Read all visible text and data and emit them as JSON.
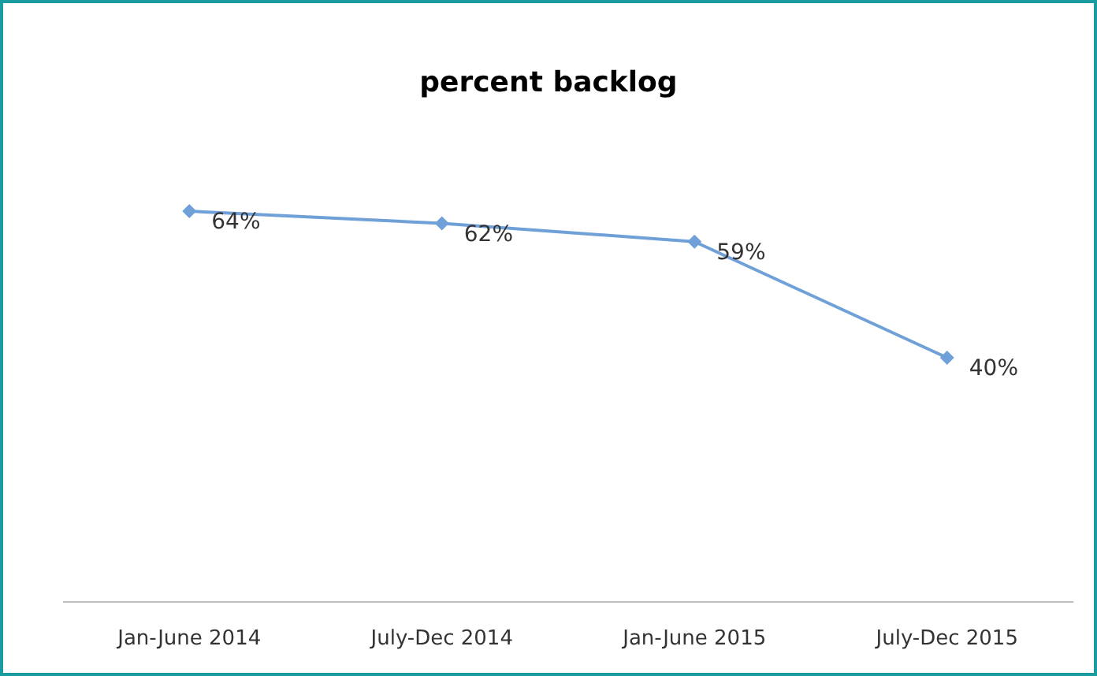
{
  "chart_data": {
    "type": "line",
    "title": "percent backlog",
    "categories": [
      "Jan-June 2014",
      "July-Dec 2014",
      "Jan-June 2015",
      "July-Dec 2015"
    ],
    "series": [
      {
        "color": "#6fa0d8",
        "values": [
          64,
          62,
          59,
          40
        ],
        "value_labels": [
          "64%",
          "62%",
          "59%",
          "40%"
        ]
      }
    ],
    "tick_labels": "x",
    "marker": "diamond",
    "line_style": "solid"
  }
}
